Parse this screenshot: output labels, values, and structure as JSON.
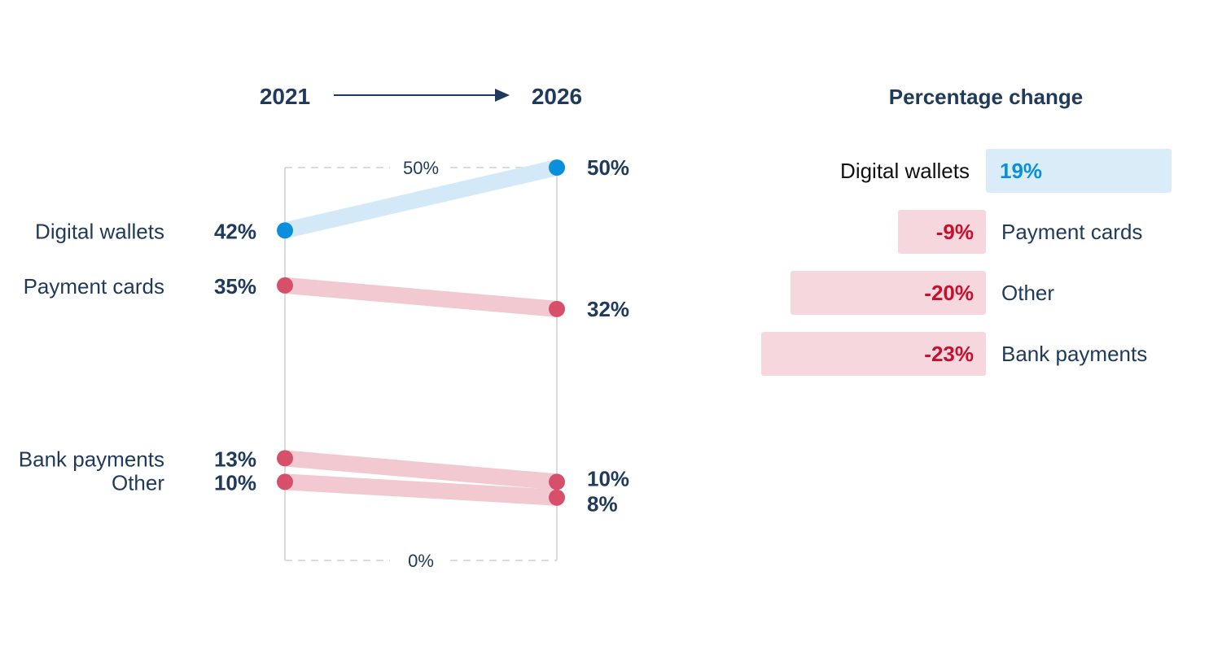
{
  "chart_data": [
    {
      "type": "slope",
      "start_label": "2021",
      "end_label": "2026",
      "ylim": [
        0,
        50
      ],
      "y_ticks": [
        "50%",
        "0%"
      ],
      "y_tick_values": [
        50,
        0
      ],
      "series": [
        {
          "name": "Digital wallets",
          "start": 42,
          "end": 50,
          "start_label": "42%",
          "end_label": "50%",
          "trend": "up"
        },
        {
          "name": "Payment cards",
          "start": 35,
          "end": 32,
          "start_label": "35%",
          "end_label": "32%",
          "trend": "down"
        },
        {
          "name": "Bank payments",
          "start": 13,
          "end": 10,
          "start_label": "13%",
          "end_label": "10%",
          "trend": "down"
        },
        {
          "name": "Other",
          "start": 10,
          "end": 8,
          "start_label": "10%",
          "end_label": "8%",
          "trend": "down"
        }
      ]
    },
    {
      "type": "bar",
      "title": "Percentage change",
      "orientation": "horizontal-diverging",
      "categories": [
        "Digital wallets",
        "Payment cards",
        "Other",
        "Bank payments"
      ],
      "values": [
        19,
        -9,
        -20,
        -23
      ],
      "labels": [
        "19%",
        "-9%",
        "-20%",
        "-23%"
      ]
    }
  ],
  "colors": {
    "up_dot": "#0a8fdc",
    "up_line": "#d3e9f7",
    "down_dot": "#d6506a",
    "down_line": "#f2c9d1",
    "pos_bar": "#d9ecf8",
    "neg_bar": "#f6d7dd",
    "pos_text": "#0a8fdc",
    "neg_text": "#c8102e",
    "text": "#1f3a5a",
    "axis": "#d8dbe0"
  }
}
